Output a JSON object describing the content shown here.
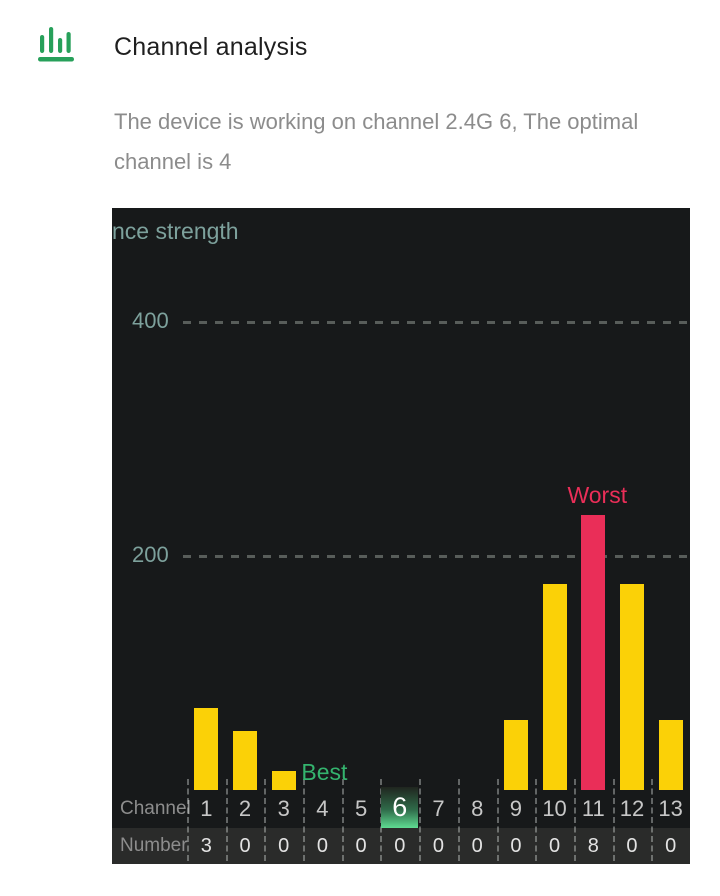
{
  "header": {
    "icon": "bar-chart-icon",
    "title": "Channel analysis",
    "subtitle": "The device is working on channel 2.4G 6, The optimal channel is 4"
  },
  "chart_data": {
    "type": "bar",
    "title": "nce strength",
    "title_note": "clipped left edge of 'Interference strength'",
    "categories": [
      1,
      2,
      3,
      4,
      5,
      6,
      7,
      8,
      9,
      10,
      11,
      12,
      13
    ],
    "series": [
      {
        "name": "interference-strength",
        "values": [
          70,
          50,
          16,
          0,
          0,
          0,
          0,
          0,
          60,
          176,
          235,
          176,
          60
        ]
      }
    ],
    "y_ticks": [
      200,
      400
    ],
    "ylim": [
      0,
      560
    ],
    "grid": "dashed-horizontal",
    "channel_row": {
      "label": "Channel"
    },
    "number_row": {
      "label": "Number",
      "values": [
        3,
        0,
        0,
        0,
        0,
        0,
        0,
        0,
        0,
        0,
        8,
        0,
        0
      ]
    },
    "current_channel": 6,
    "annotations": {
      "best": {
        "label": "Best",
        "channel": 4
      },
      "worst": {
        "label": "Worst",
        "channel": 11
      }
    }
  },
  "colors": {
    "bar_yellow": "#fbd107",
    "bar_red": "#ea2e58",
    "best_green": "#34b46e",
    "worst_red": "#ea2e58",
    "highlight_green": "#5fdb92",
    "axis_teal": "#7da19c",
    "icon_green": "#27a05a",
    "panel_bg": "#17191a",
    "number_row_bg": "#2a2b2a"
  }
}
